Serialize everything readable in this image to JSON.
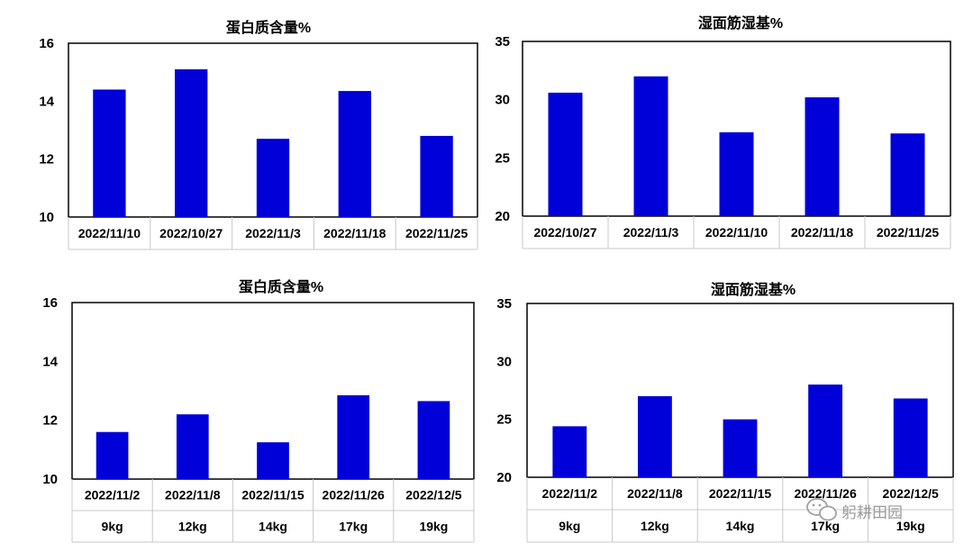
{
  "charts": [
    {
      "type": "bar",
      "title": "蛋白质含量%",
      "categories": [
        "2022/11/10",
        "2022/10/27",
        "2022/11/3",
        "2022/11/18",
        "2022/11/25"
      ],
      "values": [
        14.4,
        15.1,
        12.7,
        14.35,
        12.8
      ],
      "ylim": [
        10,
        16
      ],
      "yticks": [
        10,
        12,
        14,
        16
      ],
      "color": "#0000d8"
    },
    {
      "type": "bar",
      "title": "湿面筋湿基%",
      "categories": [
        "2022/10/27",
        "2022/11/3",
        "2022/11/10",
        "2022/11/18",
        "2022/11/25"
      ],
      "values": [
        30.6,
        32.0,
        27.2,
        30.2,
        27.1
      ],
      "ylim": [
        20,
        35
      ],
      "yticks": [
        20,
        25,
        30,
        35
      ],
      "color": "#0000d8"
    },
    {
      "type": "bar",
      "title": "蛋白质含量%",
      "categories": [
        "2022/11/2",
        "2022/11/8",
        "2022/11/15",
        "2022/11/26",
        "2022/12/5"
      ],
      "categories2": [
        "9kg",
        "12kg",
        "14kg",
        "17kg",
        "19kg"
      ],
      "values": [
        11.6,
        12.2,
        11.25,
        12.85,
        12.65
      ],
      "ylim": [
        10,
        16
      ],
      "yticks": [
        10,
        12,
        14,
        16
      ],
      "color": "#0000d8"
    },
    {
      "type": "bar",
      "title": "湿面筋湿基%",
      "categories": [
        "2022/11/2",
        "2022/11/8",
        "2022/11/15",
        "2022/11/26",
        "2022/12/5"
      ],
      "categories2": [
        "9kg",
        "12kg",
        "14kg",
        "17kg",
        "19kg"
      ],
      "values": [
        24.4,
        27.0,
        25.0,
        28.0,
        26.8
      ],
      "ylim": [
        20,
        35
      ],
      "yticks": [
        20,
        25,
        30,
        35
      ],
      "color": "#0000d8"
    }
  ],
  "chart_data": [
    {
      "type": "bar",
      "title": "蛋白质含量%",
      "categories": [
        "2022/11/10",
        "2022/10/27",
        "2022/11/3",
        "2022/11/18",
        "2022/11/25"
      ],
      "values": [
        14.4,
        15.1,
        12.7,
        14.35,
        12.8
      ],
      "ylim": [
        10,
        16
      ]
    },
    {
      "type": "bar",
      "title": "湿面筋湿基%",
      "categories": [
        "2022/10/27",
        "2022/11/3",
        "2022/11/10",
        "2022/11/18",
        "2022/11/25"
      ],
      "values": [
        30.6,
        32.0,
        27.2,
        30.2,
        27.1
      ],
      "ylim": [
        20,
        35
      ]
    },
    {
      "type": "bar",
      "title": "蛋白质含量%",
      "categories": [
        "2022/11/2",
        "2022/11/8",
        "2022/11/15",
        "2022/11/26",
        "2022/12/5"
      ],
      "categories2": [
        "9kg",
        "12kg",
        "14kg",
        "17kg",
        "19kg"
      ],
      "values": [
        11.6,
        12.2,
        11.25,
        12.85,
        12.65
      ],
      "ylim": [
        10,
        16
      ]
    },
    {
      "type": "bar",
      "title": "湿面筋湿基%",
      "categories": [
        "2022/11/2",
        "2022/11/8",
        "2022/11/15",
        "2022/11/26",
        "2022/12/5"
      ],
      "categories2": [
        "9kg",
        "12kg",
        "14kg",
        "17kg",
        "19kg"
      ],
      "values": [
        24.4,
        27.0,
        25.0,
        28.0,
        26.8
      ],
      "ylim": [
        20,
        35
      ]
    }
  ],
  "watermark": {
    "text": "躬耕田园",
    "icon": "wechat-icon"
  }
}
